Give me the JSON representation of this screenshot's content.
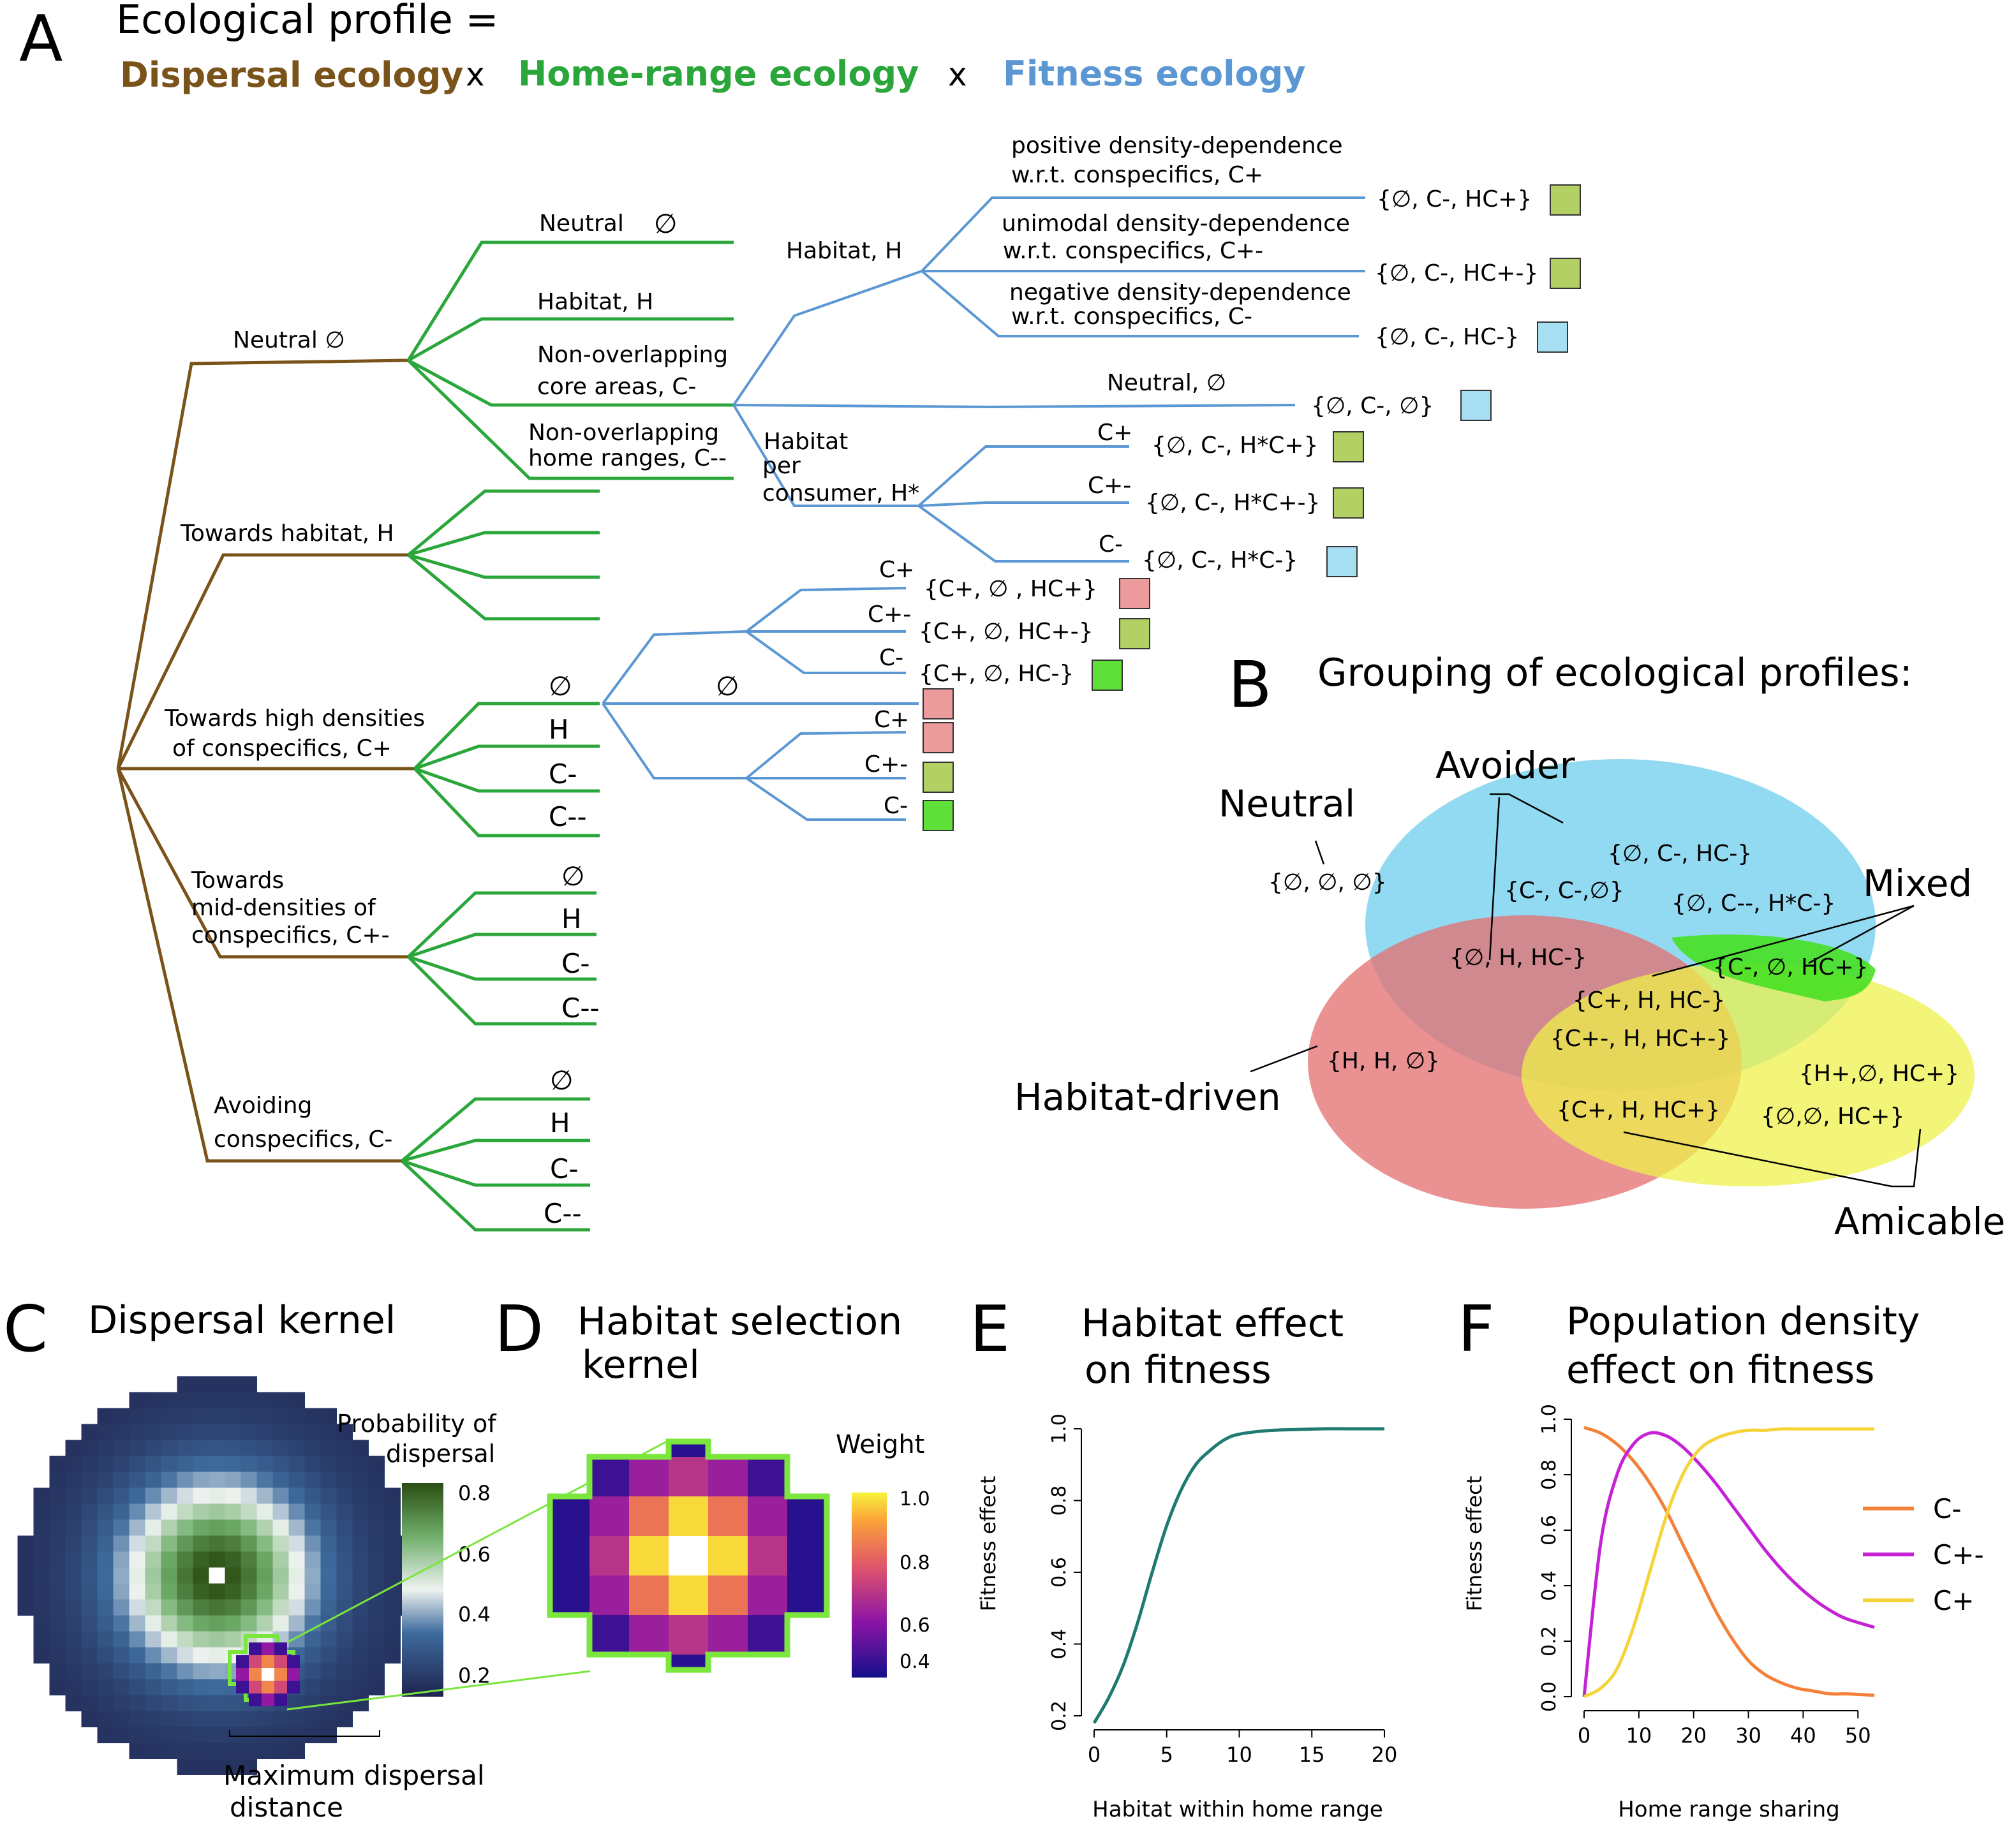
{
  "panel_a": {
    "letter": "A",
    "title": "Ecological profile =",
    "dispersal": "Dispersal ecology",
    "times1": "x",
    "homerange": "Home-range ecology",
    "times2": "x",
    "fitness": "Fitness ecology",
    "colors": {
      "dispersal": "#7a531a",
      "homerange": "#2aa63a",
      "fitness": "#5b97d2"
    },
    "dispersal_nodes": {
      "neutral": "Neutral ∅",
      "habitat": "Towards habitat, H",
      "high_1": "Towards high densities",
      "high_2": "of conspecifics, C+",
      "mid_1": "Towards",
      "mid_2": "mid-densities of",
      "mid_3": "conspecifics, C+-",
      "avoid_1": "Avoiding",
      "avoid_2": "conspecifics, C-"
    },
    "home_nodes": {
      "neutral": "Neutral",
      "neutral_sym": "∅",
      "habitat": "Habitat, H",
      "core_1": "Non-overlapping",
      "core_2": "core areas, C-",
      "hr_1": "Non-overlapping",
      "hr_2": "home ranges, C--",
      "sym_null": "∅",
      "sym_h": "H",
      "sym_cm": "C-",
      "sym_cmm": "C--"
    },
    "fitness_nodes": {
      "habitat_h": "Habitat, H",
      "pos_1": "positive density-dependence",
      "pos_2": "w.r.t. conspecifics, C+",
      "uni_1": "unimodal density-dependence",
      "uni_2": "w.r.t. conspecifics, C+-",
      "neg_1": "negative density-dependence",
      "neg_2": "w.r.t. conspecifics, C-",
      "neutral": "Neutral, ∅",
      "hpc_1": "Habitat",
      "hpc_2": "per",
      "hpc_3": "consumer, H*",
      "cp": "C+",
      "cpm": "C+-",
      "cm": "C-",
      "null": "∅"
    },
    "profiles": {
      "p1": "{∅, C-, HC+}",
      "p2": "{∅, C-, HC+-}",
      "p3": "{∅, C-, HC-}",
      "p4": "{∅, C-, ∅}",
      "p5": "{∅, C-, H*C+}",
      "p6": "{∅, C-, H*C+-}",
      "p7": "{∅, C-, H*C-}",
      "p8": "{C+, ∅ , HC+}",
      "p9": "{C+, ∅, HC+-}",
      "p10": "{C+, ∅, HC-}"
    },
    "box_colors": {
      "olive": "#b3d064",
      "blue": "#a6def2",
      "pink": "#eb9b9b",
      "green": "#5ee038"
    }
  },
  "panel_b": {
    "letter": "B",
    "title": "Grouping of ecological profiles:",
    "avoider": "Avoider",
    "neutral": "Neutral",
    "mixed": "Mixed",
    "habitat_driven": "Habitat-driven",
    "amicable": "Amicable",
    "sets": {
      "s1": "{∅, ∅, ∅}",
      "s2": "{∅, C-, HC-}",
      "s3": "{C-, C-,∅}",
      "s4": "{∅, C--, H*C-}",
      "s5": "{∅, H, HC-}",
      "s6": "{C-, ∅, HC+}",
      "s7": "{C+, H, HC-}",
      "s8": "{C+-, H, HC+-}",
      "s9": "{H, H, ∅}",
      "s10": "{H+,∅, HC+}",
      "s11": "{C+, H, HC+}",
      "s12": "{∅,∅, HC+}"
    },
    "colors": {
      "blue": "#7fd3ee",
      "red": "#e36e6e",
      "yellow": "#eef24a",
      "green": "#48e022"
    }
  },
  "panel_c": {
    "letter": "C",
    "title": "Dispersal kernel",
    "legend_1": "Probability of",
    "legend_2": "dispersal",
    "ticks": [
      "0.8",
      "0.6",
      "0.4",
      "0.2"
    ],
    "scale_1": "Maximum dispersal",
    "scale_2": "distance"
  },
  "panel_d": {
    "letter": "D",
    "title_1": "Habitat selection",
    "title_2": "kernel",
    "legend": "Weight",
    "ticks": [
      "1.0",
      "0.8",
      "0.6",
      "0.4"
    ]
  },
  "panel_e": {
    "letter": "E",
    "title_1": "Habitat effect",
    "title_2": "on fitness",
    "ylabel": "Fitness effect",
    "xlabel": "Habitat within home range",
    "yticks": [
      "0.2",
      "0.4",
      "0.6",
      "0.8",
      "1.0"
    ],
    "xticks": [
      "0",
      "5",
      "10",
      "15",
      "20"
    ],
    "line_color": "#1f7a72"
  },
  "panel_f": {
    "letter": "F",
    "title_1": "Population density",
    "title_2": "effect on fitness",
    "ylabel": "Fitness effect",
    "xlabel": "Home range sharing",
    "yticks": [
      "0.0",
      "0.2",
      "0.4",
      "0.6",
      "0.8",
      "1.0"
    ],
    "xticks": [
      "0",
      "10",
      "20",
      "30",
      "40",
      "50"
    ],
    "legend": [
      {
        "name": "C-",
        "color": "#f38238"
      },
      {
        "name": "C+-",
        "color": "#c522d6"
      },
      {
        "name": "C+",
        "color": "#f5d43a"
      }
    ]
  },
  "chart_data": [
    {
      "type": "line",
      "title": "Habitat effect on fitness",
      "xlabel": "Habitat within home range",
      "ylabel": "Fitness effect",
      "xlim": [
        0,
        20
      ],
      "ylim": [
        0.2,
        1.0
      ],
      "x": [
        0,
        1,
        2,
        3,
        4,
        5,
        6,
        7,
        8,
        9,
        10,
        12,
        14,
        16,
        18,
        20
      ],
      "series": [
        {
          "values": [
            0.18,
            0.25,
            0.34,
            0.46,
            0.6,
            0.73,
            0.83,
            0.9,
            0.94,
            0.97,
            0.985,
            0.995,
            0.998,
            1.0,
            1.0,
            1.0
          ]
        }
      ]
    },
    {
      "type": "line",
      "title": "Population density effect on fitness",
      "xlabel": "Home range sharing",
      "ylabel": "Fitness effect",
      "xlim": [
        0,
        53
      ],
      "ylim": [
        0,
        1.0
      ],
      "x": [
        0,
        3,
        6,
        9,
        12,
        15,
        18,
        21,
        24,
        27,
        30,
        33,
        36,
        39,
        42,
        45,
        48,
        53
      ],
      "series": [
        {
          "name": "C-",
          "values": [
            0.97,
            0.95,
            0.91,
            0.85,
            0.77,
            0.67,
            0.55,
            0.43,
            0.31,
            0.21,
            0.13,
            0.08,
            0.05,
            0.03,
            0.02,
            0.01,
            0.01,
            0.005
          ]
        },
        {
          "name": "C+-",
          "values": [
            0.0,
            0.55,
            0.8,
            0.91,
            0.95,
            0.94,
            0.9,
            0.84,
            0.77,
            0.69,
            0.61,
            0.53,
            0.46,
            0.4,
            0.35,
            0.31,
            0.28,
            0.25
          ]
        },
        {
          "name": "C+",
          "values": [
            0.0,
            0.03,
            0.1,
            0.25,
            0.45,
            0.65,
            0.8,
            0.89,
            0.93,
            0.95,
            0.96,
            0.96,
            0.965,
            0.965,
            0.965,
            0.965,
            0.965,
            0.965
          ]
        }
      ]
    }
  ]
}
